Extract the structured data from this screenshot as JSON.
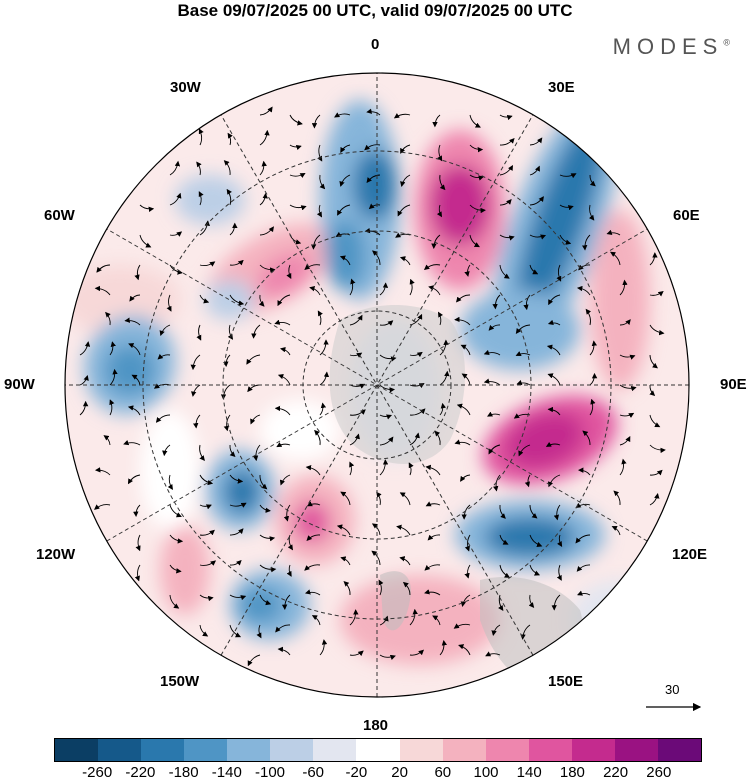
{
  "header": {
    "title": "Base 09/07/2025 00 UTC, valid 09/07/2025 00 UTC",
    "brand": "MODES",
    "brand_mark": "®"
  },
  "map": {
    "longitude_labels": {
      "lon_0": "0",
      "lon_30e": "30E",
      "lon_60e": "60E",
      "lon_90e": "90E",
      "lon_120e": "120E",
      "lon_150e": "150E",
      "lon_180": "180",
      "lon_150w": "150W",
      "lon_120w": "120W",
      "lon_90w": "90W",
      "lon_60w": "60W",
      "lon_30w": "30W"
    },
    "reference_vector": "30"
  },
  "colorbar": {
    "colors": [
      "#0b3e64",
      "#15598a",
      "#2a78ad",
      "#4f95c5",
      "#86b5da",
      "#bccfe6",
      "#e3e6f0",
      "#ffffff",
      "#f7d8d8",
      "#f4b2bf",
      "#ee86ae",
      "#e0559f",
      "#c42b8e",
      "#9a1282",
      "#6b0a78"
    ],
    "ticks": [
      "-260",
      "-220",
      "-180",
      "-140",
      "-100",
      "-60",
      "-20",
      "20",
      "60",
      "100",
      "140",
      "180",
      "220",
      "260"
    ]
  }
}
